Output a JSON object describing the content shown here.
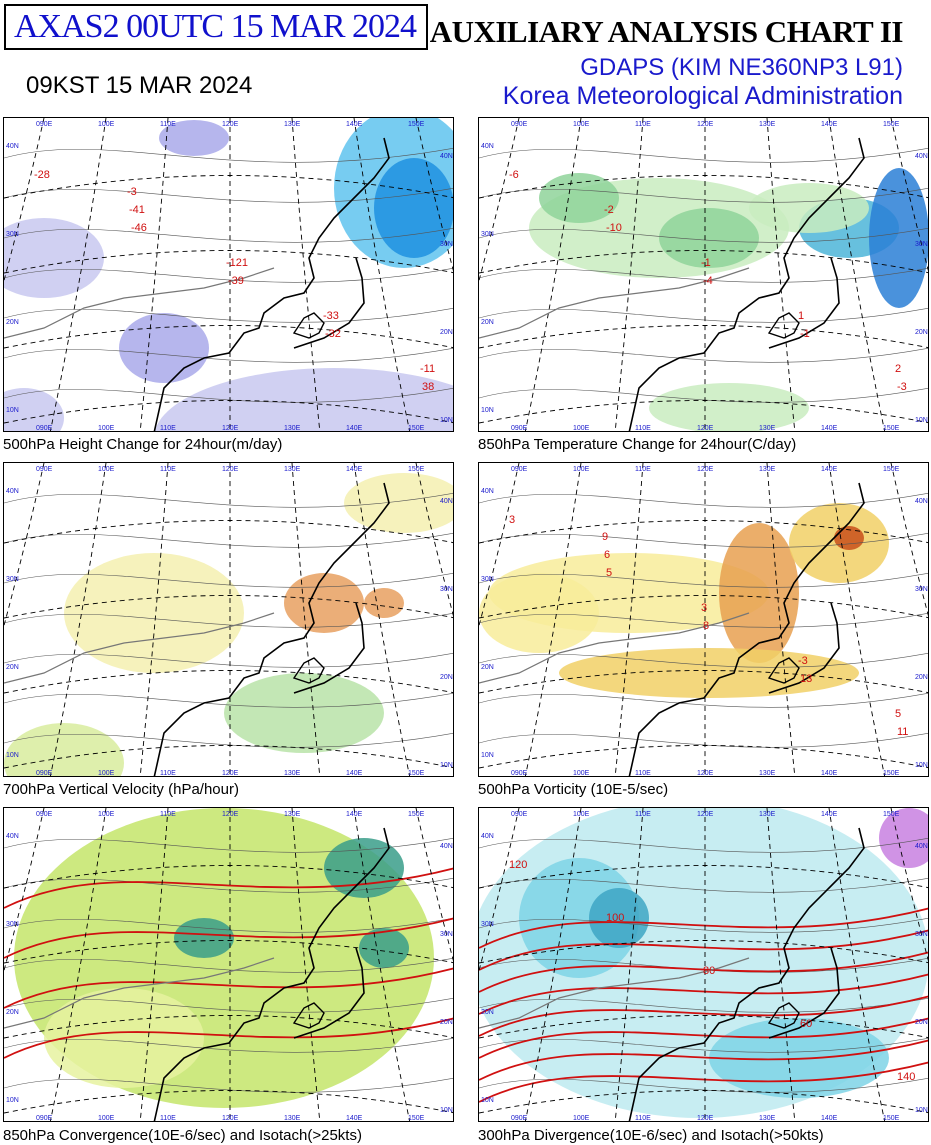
{
  "header": {
    "product_id": "AXAS2  00UTC 15 MAR 2024",
    "local_time": "09KST 15 MAR 2024",
    "chart_title": "AUXILIARY ANALYSIS CHART II",
    "model": "GDAPS (KIM NE360NP3 L91)",
    "agency": "Korea Meteorological Administration"
  },
  "grid_labels": {
    "lon": [
      "090E",
      "100E",
      "110E",
      "120E",
      "130E",
      "140E",
      "150E"
    ],
    "lat": [
      "40N",
      "30N",
      "20N",
      "10N"
    ]
  },
  "panels": [
    {
      "id": "height-change",
      "caption": "500hPa Height Change for 24hour(m/day)",
      "palette": [
        "#c8c8f0",
        "#a9a9ea",
        "#5fc3ee",
        "#1e90e0"
      ],
      "labels": [
        "-28",
        "-46",
        "-39",
        "-32",
        "38",
        "-41",
        "-121",
        "-33",
        "-11",
        "-3"
      ]
    },
    {
      "id": "temp-change",
      "caption": "850hPa Temperature Change for 24hour(C/day)",
      "palette": [
        "#c9ecc0",
        "#8fd49a",
        "#4cb5d8",
        "#2a7fd6"
      ],
      "labels": [
        "-6",
        "-10",
        "-4",
        "-1",
        "-3",
        "-2",
        "-1",
        "1",
        "2"
      ]
    },
    {
      "id": "vertical-velocity",
      "caption": "700hPa Vertical Velocity (hPa/hour)",
      "palette": [
        "#f5f0b0",
        "#d8ec9e",
        "#b8e3a8",
        "#e8a060"
      ],
      "labels": []
    },
    {
      "id": "vorticity",
      "caption": "500hPa Vorticity (10E-5/sec)",
      "palette": [
        "#f8ec9a",
        "#f1d066",
        "#e8a050",
        "#c8501a"
      ],
      "labels": [
        "3",
        "5",
        "8",
        "13",
        "11",
        "6",
        "3",
        "-3",
        "5",
        "9"
      ]
    },
    {
      "id": "convergence",
      "caption": "850hPa Convergence(10E-6/sec) and Isotach(>25kts)",
      "palette": [
        "#e6f2a0",
        "#c4e56a",
        "#8ccf72",
        "#3a9e8a"
      ],
      "labels": []
    },
    {
      "id": "divergence",
      "caption": "300hPa Divergence(10E-6/sec) and Isotach(>50kts)",
      "palette": [
        "#bdeaf0",
        "#7ed3e6",
        "#3ea6c4",
        "#c880e0"
      ],
      "labels": [
        "120",
        "100",
        "80",
        "60",
        "140"
      ]
    }
  ]
}
